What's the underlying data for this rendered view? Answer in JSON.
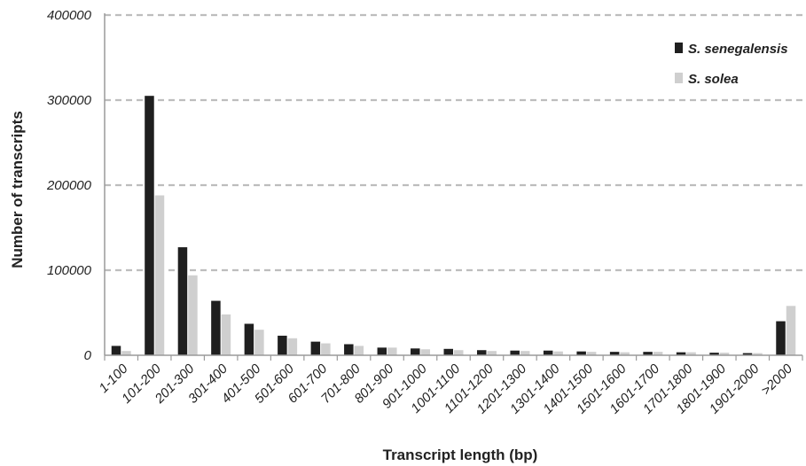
{
  "chart_data": {
    "type": "bar",
    "title": "",
    "xlabel": "Transcript length (bp)",
    "ylabel": "Number of transcripts",
    "ylim": [
      0,
      400000
    ],
    "yticks": [
      "0",
      "100000",
      "200000",
      "300000",
      "400000"
    ],
    "grid": "horizontal dashed",
    "legend_position": "top-right",
    "categories": [
      "1-100",
      "101-200",
      "201-300",
      "301-400",
      "401-500",
      "501-600",
      "601-700",
      "701-800",
      "801-900",
      "901-1000",
      "1001-1100",
      "1101-1200",
      "1201-1300",
      "1301-1400",
      "1401-1500",
      "1501-1600",
      "1601-1700",
      "1701-1800",
      "1801-1900",
      "1901-2000",
      ">2000"
    ],
    "series": [
      {
        "name": "S. senegalensis",
        "color": "#1f1f1f",
        "values": [
          11000,
          305000,
          127000,
          64000,
          37000,
          23000,
          16000,
          13000,
          9000,
          8000,
          7500,
          6000,
          5500,
          5500,
          4500,
          4000,
          4000,
          3500,
          3000,
          2500,
          40000
        ]
      },
      {
        "name": "S. solea",
        "color": "#cfcfcf",
        "values": [
          5000,
          188000,
          94000,
          48000,
          30000,
          20000,
          14000,
          11000,
          9000,
          7000,
          6000,
          5000,
          5000,
          4500,
          4000,
          3500,
          4000,
          3500,
          3000,
          2500,
          58000
        ]
      }
    ]
  }
}
